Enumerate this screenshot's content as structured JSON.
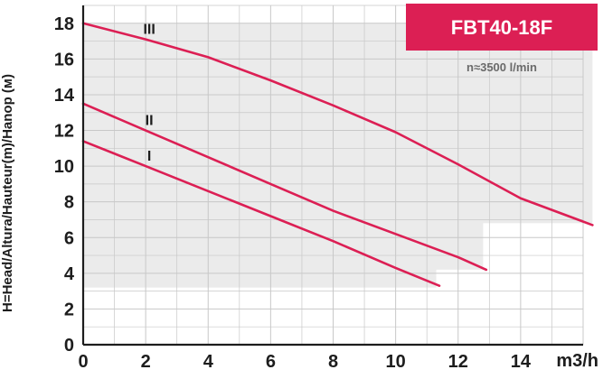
{
  "chart_data": {
    "type": "line",
    "title": "FBT40-18F",
    "subtitle": "n≈3500 l/min",
    "xlabel": "m3/h",
    "ylabel": "H=Head/Altura/Hauteur(m)/Hanop (м)",
    "xlim": [
      0,
      16
    ],
    "ylim": [
      0,
      19
    ],
    "x_ticks": [
      0,
      2,
      4,
      6,
      8,
      10,
      12,
      14
    ],
    "y_ticks": [
      0,
      2,
      4,
      6,
      8,
      10,
      12,
      14,
      16,
      18
    ],
    "grid": true,
    "colors": {
      "curve": "#dc1f54",
      "badge": "#dc1f54",
      "band": "#ebebeb",
      "grid": "#c8c8c8",
      "axis": "#1d1d1d"
    },
    "operating_range": [
      {
        "x": 0,
        "y": 3.2
      },
      {
        "x": 11.3,
        "y": 3.2
      },
      {
        "x": 11.3,
        "y": 4.2
      },
      {
        "x": 12.8,
        "y": 4.2
      },
      {
        "x": 12.8,
        "y": 6.8
      },
      {
        "x": 16.3,
        "y": 6.8
      },
      {
        "x": 16.3,
        "y": 18
      },
      {
        "x": 0,
        "y": 18
      }
    ],
    "series": [
      {
        "name": "III",
        "points": [
          {
            "x": 0,
            "y": 18
          },
          {
            "x": 2,
            "y": 17.1
          },
          {
            "x": 4,
            "y": 16.1
          },
          {
            "x": 6,
            "y": 14.8
          },
          {
            "x": 8,
            "y": 13.4
          },
          {
            "x": 10,
            "y": 11.9
          },
          {
            "x": 12,
            "y": 10.1
          },
          {
            "x": 14,
            "y": 8.2
          },
          {
            "x": 16.3,
            "y": 6.7
          }
        ]
      },
      {
        "name": "II",
        "points": [
          {
            "x": 0,
            "y": 13.5
          },
          {
            "x": 2,
            "y": 12.0
          },
          {
            "x": 4,
            "y": 10.5
          },
          {
            "x": 6,
            "y": 9.0
          },
          {
            "x": 8,
            "y": 7.5
          },
          {
            "x": 10,
            "y": 6.2
          },
          {
            "x": 12,
            "y": 4.9
          },
          {
            "x": 12.9,
            "y": 4.2
          }
        ]
      },
      {
        "name": "I",
        "points": [
          {
            "x": 0,
            "y": 11.4
          },
          {
            "x": 2,
            "y": 10.0
          },
          {
            "x": 4,
            "y": 8.6
          },
          {
            "x": 6,
            "y": 7.2
          },
          {
            "x": 8,
            "y": 5.8
          },
          {
            "x": 10,
            "y": 4.3
          },
          {
            "x": 11.4,
            "y": 3.3
          }
        ]
      }
    ]
  }
}
